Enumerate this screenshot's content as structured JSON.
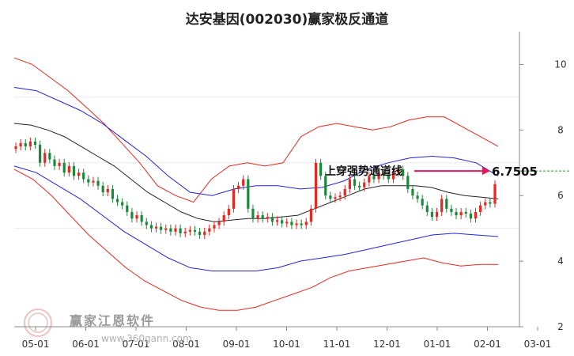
{
  "chart_data": {
    "type": "candlestick",
    "title": "达安基因(002030)赢家极反通道",
    "x_ticks": [
      "05-01",
      "06-01",
      "07-01",
      "08-01",
      "09-01",
      "10-01",
      "11-01",
      "12-01",
      "01-01",
      "02-01",
      "03-01"
    ],
    "y_ticks": [
      2,
      4,
      6,
      8,
      10
    ],
    "ylim": [
      2,
      11
    ],
    "annotation": {
      "label": "上穿强势通道线",
      "value": "6.7505",
      "y": 6.7505
    },
    "close_price": [
      7.5,
      7.6,
      7.5,
      7.65,
      7.55,
      7.0,
      7.3,
      7.1,
      6.9,
      7.0,
      6.7,
      6.9,
      6.6,
      6.7,
      6.5,
      6.4,
      6.45,
      6.3,
      6.1,
      6.2,
      5.9,
      5.8,
      5.7,
      5.5,
      5.3,
      5.4,
      5.2,
      5.1,
      5.0,
      5.05,
      4.95,
      5.0,
      4.9,
      5.0,
      4.85,
      4.9,
      4.95,
      4.9,
      4.8,
      4.9,
      5.0,
      5.1,
      5.2,
      5.4,
      5.6,
      6.2,
      6.3,
      6.5,
      5.6,
      5.3,
      5.4,
      5.3,
      5.35,
      5.2,
      5.25,
      5.15,
      5.2,
      5.1,
      5.15,
      5.1,
      5.2,
      5.6,
      7.0,
      6.6,
      6.0,
      5.9,
      5.95,
      6.0,
      6.2,
      6.5,
      6.3,
      6.25,
      6.4,
      6.6,
      6.5,
      6.7,
      6.6,
      6.5,
      6.7,
      6.8,
      6.6,
      6.2,
      6.0,
      5.9,
      5.7,
      5.5,
      5.35,
      5.5,
      5.9,
      5.6,
      5.5,
      5.4,
      5.5,
      5.45,
      5.3,
      5.5,
      5.7,
      5.8,
      5.75,
      6.35
    ],
    "ma_center": [
      8.2,
      8.15,
      8.0,
      7.8,
      7.5,
      7.2,
      6.9,
      6.5,
      6.1,
      5.8,
      5.5,
      5.3,
      5.2,
      5.25,
      5.3,
      5.3,
      5.35,
      5.4,
      5.6,
      5.8,
      6.0,
      6.2,
      6.3,
      6.3,
      6.3,
      6.25,
      6.1,
      6.0,
      5.95,
      5.9
    ],
    "upper_band": [
      10.2,
      10.0,
      9.6,
      9.2,
      8.7,
      8.2,
      7.6,
      7.0,
      6.3,
      6.0,
      5.8,
      6.5,
      6.9,
      7.0,
      6.9,
      7.0,
      7.8,
      8.1,
      8.2,
      8.1,
      8.0,
      8.1,
      8.3,
      8.4,
      8.4,
      8.1,
      7.8,
      7.5
    ],
    "lower_band": [
      6.8,
      6.5,
      6.0,
      5.4,
      4.8,
      4.3,
      3.8,
      3.4,
      3.1,
      2.8,
      2.6,
      2.5,
      2.5,
      2.6,
      2.8,
      3.0,
      3.2,
      3.5,
      3.7,
      3.8,
      3.9,
      4.0,
      4.1,
      3.95,
      3.85,
      3.9,
      3.9
    ],
    "upper_channel": [
      9.3,
      9.2,
      8.9,
      8.6,
      8.2,
      7.7,
      7.2,
      6.6,
      6.1,
      6.0,
      6.2,
      6.3,
      6.3,
      6.2,
      6.25,
      6.45,
      6.8,
      7.0,
      7.15,
      7.2,
      7.15,
      7.0,
      6.6
    ],
    "lower_channel": [
      6.9,
      6.7,
      6.3,
      5.9,
      5.4,
      4.9,
      4.5,
      4.1,
      3.8,
      3.7,
      3.7,
      3.7,
      3.8,
      4.0,
      4.1,
      4.2,
      4.35,
      4.5,
      4.65,
      4.8,
      4.85,
      4.8,
      4.75
    ],
    "colors": {
      "up": "#e8271f",
      "down": "#1a8a3a",
      "upper_band": "#e8271f",
      "lower_band": "#e8271f",
      "channel": "#2222dd",
      "ma": "#222222",
      "arrow": "#e0195a"
    }
  },
  "watermark": {
    "text": "赢家江恩软件",
    "url": "www.360gann.com"
  }
}
